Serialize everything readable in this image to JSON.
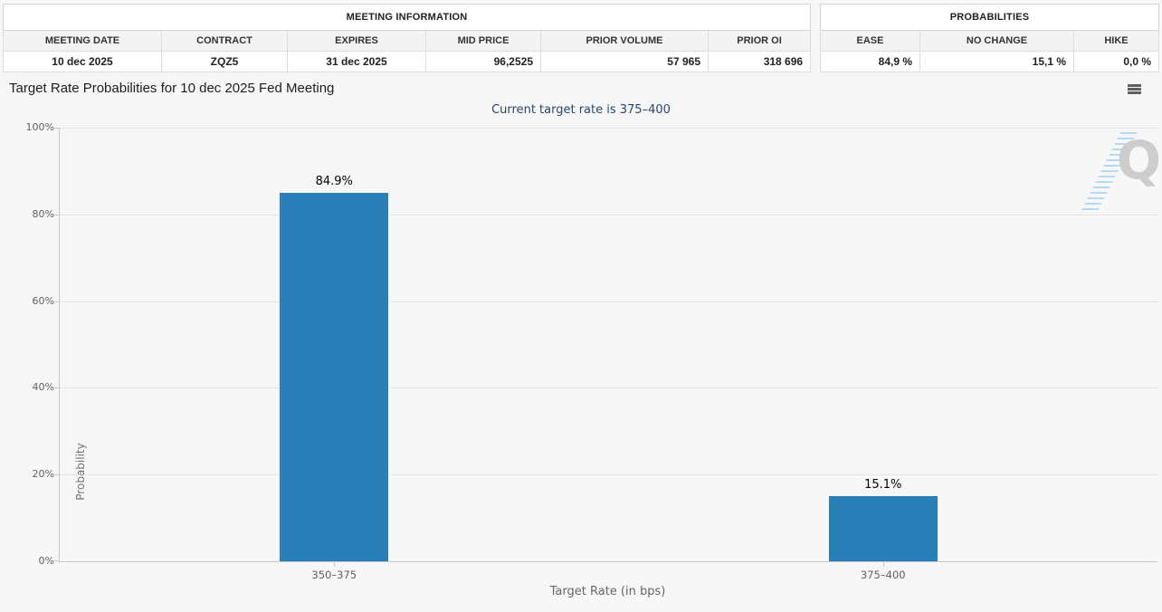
{
  "meeting_information": {
    "title": "MEETING INFORMATION",
    "columns": [
      "MEETING DATE",
      "CONTRACT",
      "EXPIRES",
      "MID PRICE",
      "PRIOR VOLUME",
      "PRIOR OI"
    ],
    "values": [
      "10 dec 2025",
      "ZQZ5",
      "31 dec 2025",
      "96,2525",
      "57 965",
      "318 696"
    ]
  },
  "probabilities_summary": {
    "title": "PROBABILITIES",
    "columns": [
      "EASE",
      "NO CHANGE",
      "HIKE"
    ],
    "values": [
      "84,9 %",
      "15,1 %",
      "0,0 %"
    ]
  },
  "chart_data": {
    "type": "bar",
    "title": "Target Rate Probabilities for 10 dec 2025 Fed Meeting",
    "subtitle": "Current target rate is 375–400",
    "categories": [
      "350–375",
      "375–400"
    ],
    "values": [
      84.9,
      15.1
    ],
    "data_labels": [
      "84.9%",
      "15.1%"
    ],
    "xlabel": "Target Rate (in bps)",
    "ylabel": "Probability",
    "ylim": [
      0,
      100
    ],
    "ytick_labels": [
      "0%",
      "20%",
      "40%",
      "60%",
      "80%",
      "100%"
    ],
    "grid": true,
    "legend": false,
    "bar_color": "#2b7fb9"
  },
  "icons": {
    "menu": "hamburger-icon",
    "watermark_letter": "Q"
  },
  "colors": {
    "page_background": "#f7f7f7",
    "bar": "#2b7fb9",
    "subtitle_text": "#25476b",
    "axis_text": "#606060",
    "watermark_gray": "#c9c9c9",
    "watermark_blue": "#aed6f2"
  }
}
